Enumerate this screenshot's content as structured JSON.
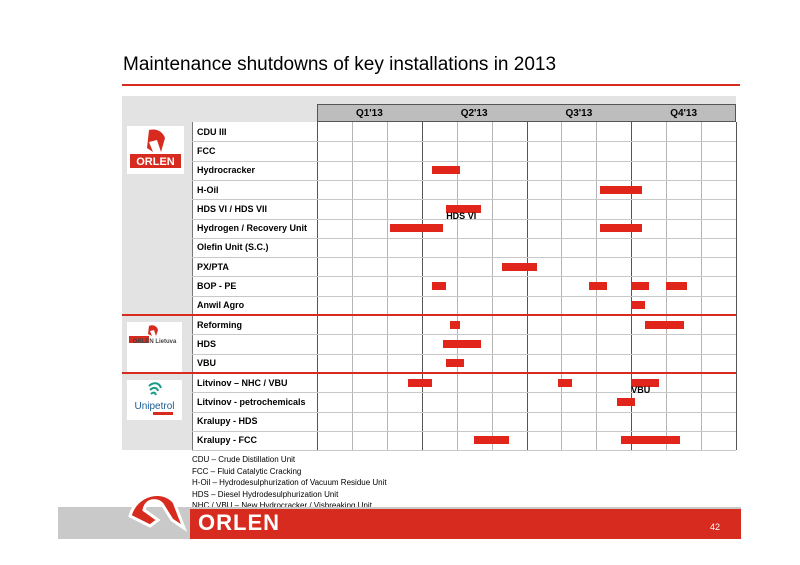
{
  "slide": {
    "title": "Maintenance shutdowns of key installations in 2013",
    "page_number": "42",
    "footer_logo": "ORLEN"
  },
  "logos": {
    "orlen": "ORLEN",
    "orlen_lietuva": "ORLEN Lietuva",
    "unipetrol": "Unipetrol"
  },
  "colors": {
    "accent": "#d62b1e",
    "bar": "#e1251b",
    "header_gray": "#bdbdbd",
    "panel_gray": "#e3e3e3"
  },
  "legend": [
    "CDU – Crude Distillation Unit",
    "FCC – Fluid Catalytic Cracking",
    "H-Oil – Hydrodesulphurization of Vacuum Residue Unit",
    "HDS – Diesel Hydrodesulphurization Unit",
    "NHC / VBU – New Hydrocracker / Visbreaking Unit"
  ],
  "chart_data": {
    "type": "gantt",
    "title": "Maintenance shutdowns of key installations in 2013",
    "columns": [
      "Q1'13",
      "Q2'13",
      "Q3'13",
      "Q4'13"
    ],
    "time_unit": "month of 2013",
    "range": [
      0,
      12
    ],
    "groups": [
      {
        "company": "ORLEN",
        "rows": [
          {
            "label": "CDU III",
            "bars": []
          },
          {
            "label": "FCC",
            "bars": []
          },
          {
            "label": "Hydrocracker",
            "bars": [
              [
                3.3,
                4.1
              ]
            ]
          },
          {
            "label": "H-Oil",
            "bars": [
              [
                8.1,
                9.3
              ]
            ]
          },
          {
            "label": "HDS VI / HDS VII",
            "bars": [
              [
                3.7,
                4.7
              ]
            ],
            "annotation": "HDS VI"
          },
          {
            "label": "Hydrogen / Recovery Unit",
            "bars": [
              [
                2.1,
                3.6
              ],
              [
                8.1,
                9.3
              ]
            ]
          },
          {
            "label": "Olefin Unit (S.C.)",
            "bars": []
          },
          {
            "label": "PX/PTA",
            "bars": [
              [
                5.3,
                6.3
              ]
            ]
          },
          {
            "label": "BOP - PE",
            "bars": [
              [
                3.3,
                3.7
              ],
              [
                7.8,
                8.3
              ],
              [
                9.0,
                9.5
              ],
              [
                10.0,
                10.6
              ]
            ]
          },
          {
            "label": "Anwil Agro",
            "bars": [
              [
                9.0,
                9.4
              ]
            ]
          }
        ]
      },
      {
        "company": "ORLEN Lietuva",
        "rows": [
          {
            "label": "Reforming",
            "bars": [
              [
                3.8,
                4.1
              ],
              [
                9.4,
                10.5
              ]
            ]
          },
          {
            "label": "HDS",
            "bars": [
              [
                3.6,
                4.7
              ]
            ]
          },
          {
            "label": "VBU",
            "bars": [
              [
                3.7,
                4.2
              ]
            ]
          }
        ]
      },
      {
        "company": "Unipetrol",
        "rows": [
          {
            "label": "Litvinov – NHC / VBU",
            "bars": [
              [
                2.6,
                3.3
              ],
              [
                6.9,
                7.3
              ],
              [
                9.0,
                9.8
              ]
            ],
            "annotation": "VBU"
          },
          {
            "label": "Litvinov - petrochemicals",
            "bars": [
              [
                8.6,
                9.1
              ]
            ]
          },
          {
            "label": "Kralupy - HDS",
            "bars": []
          },
          {
            "label": "Kralupy - FCC",
            "bars": [
              [
                4.5,
                5.5
              ],
              [
                8.7,
                10.4
              ]
            ]
          }
        ]
      }
    ]
  }
}
